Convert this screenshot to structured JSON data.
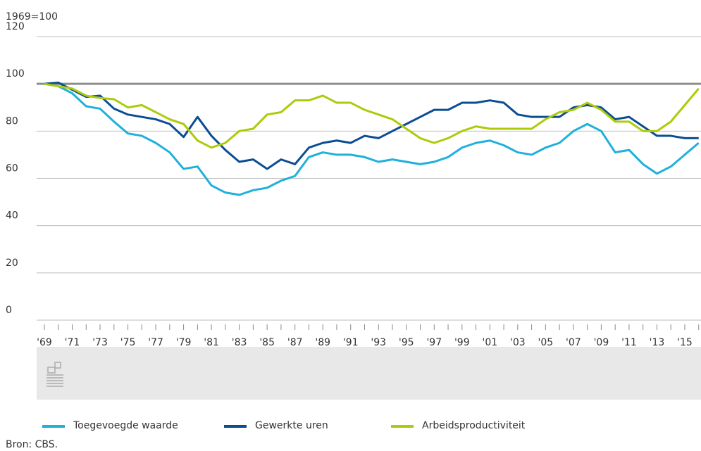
{
  "chart_data": {
    "type": "line",
    "ylabel": "1969=100",
    "source": "Bron: CBS.",
    "categories": [
      "'69",
      null,
      "'71",
      null,
      "'73",
      null,
      "'75",
      null,
      "'77",
      null,
      "'79",
      null,
      "'81",
      null,
      "'83",
      null,
      "'85",
      null,
      "'87",
      null,
      "'89",
      null,
      "'91",
      null,
      "'93",
      null,
      "'95",
      null,
      "'97",
      null,
      "'99",
      null,
      "'01",
      null,
      "'03",
      null,
      "'05",
      null,
      "'07",
      null,
      "'09",
      null,
      "'11",
      null,
      "'13",
      null,
      "'15",
      null
    ],
    "series": [
      {
        "name": "Toegevoegde waarde",
        "color": "#1fb0dc",
        "values": [
          100,
          99,
          96,
          90.5,
          89.5,
          84,
          79,
          78,
          75,
          71,
          64,
          65,
          57,
          54,
          53,
          55,
          56,
          59,
          61,
          69,
          71,
          70,
          70,
          69,
          67,
          68,
          67,
          66,
          67,
          69,
          73,
          75,
          76,
          74,
          71,
          70,
          73,
          75,
          80,
          83,
          80,
          71,
          72,
          66,
          62,
          65,
          70,
          75
        ]
      },
      {
        "name": "Gewerkte uren",
        "color": "#0b4d93",
        "values": [
          100,
          100.5,
          97.5,
          94.5,
          95,
          89.5,
          87,
          86,
          85,
          83,
          77.5,
          86,
          78,
          72,
          67,
          68,
          64,
          68,
          66,
          73,
          75,
          76,
          75,
          78,
          77,
          80,
          83,
          86,
          89,
          89,
          92,
          92,
          93,
          92,
          87,
          86,
          86,
          86,
          90,
          91,
          90,
          85,
          86,
          82,
          78,
          78,
          77,
          77
        ]
      },
      {
        "name": "Arbeidsproductiviteit",
        "color": "#afca0b",
        "values": [
          100,
          99,
          98,
          95,
          94,
          93.5,
          90,
          91,
          88,
          85,
          83,
          76,
          73,
          75,
          80,
          81,
          87,
          88,
          93,
          93,
          95,
          92,
          92,
          89,
          87,
          85,
          81,
          77,
          75,
          77,
          80,
          82,
          81,
          81,
          81,
          81,
          85,
          88,
          89,
          92,
          89,
          84,
          84,
          80,
          80,
          84,
          91,
          98
        ]
      }
    ],
    "ylim": [
      0,
      120
    ],
    "yticks": [
      0,
      20,
      40,
      60,
      80,
      100,
      120
    ],
    "reference_line": 100,
    "grid": true
  }
}
